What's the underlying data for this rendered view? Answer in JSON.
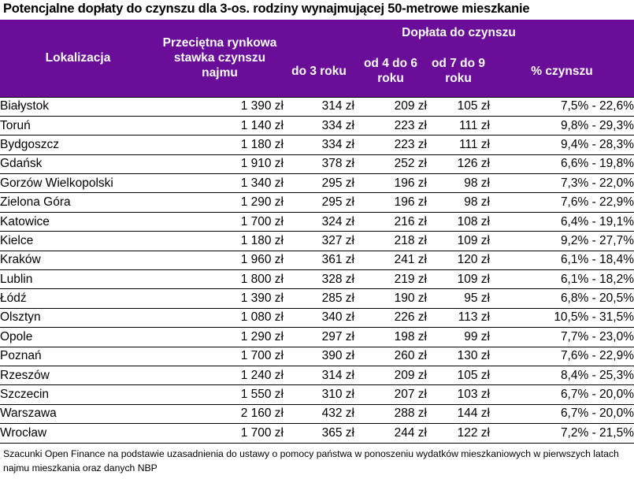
{
  "title": "Potencjalne dopłaty do czynszu dla 3-os. rodziny wynajmującej 50-metrowe mieszkanie",
  "headers": {
    "location": "Lokalizacja",
    "avg_rent": "Przeciętna rynkowa stawka czynszu najmu",
    "subsidy_group": "Dopłata do czynszu",
    "year3": "do 3 roku",
    "year4_6": "od 4 do 6 roku",
    "year7_9": "od 7 do 9 roku",
    "pct_rent": "% czynszu"
  },
  "rows": [
    {
      "city": "Białystok",
      "rent": "1 390 zł",
      "y3": "314 zł",
      "y46": "209 zł",
      "y79": "105 zł",
      "pct": "7,5% - 22,6%"
    },
    {
      "city": "Toruń",
      "rent": "1 140 zł",
      "y3": "334 zł",
      "y46": "223 zł",
      "y79": "111 zł",
      "pct": "9,8% - 29,3%"
    },
    {
      "city": "Bydgoszcz",
      "rent": "1 180 zł",
      "y3": "334 zł",
      "y46": "223 zł",
      "y79": "111 zł",
      "pct": "9,4% - 28,3%"
    },
    {
      "city": "Gdańsk",
      "rent": "1 910 zł",
      "y3": "378 zł",
      "y46": "252 zł",
      "y79": "126 zł",
      "pct": "6,6% - 19,8%"
    },
    {
      "city": "Gorzów Wielkopolski",
      "rent": "1 340 zł",
      "y3": "295 zł",
      "y46": "196 zł",
      "y79": "98 zł",
      "pct": "7,3% - 22,0%"
    },
    {
      "city": "Zielona Góra",
      "rent": "1 290 zł",
      "y3": "295 zł",
      "y46": "196 zł",
      "y79": "98 zł",
      "pct": "7,6% - 22,9%"
    },
    {
      "city": "Katowice",
      "rent": "1 700 zł",
      "y3": "324 zł",
      "y46": "216 zł",
      "y79": "108 zł",
      "pct": "6,4% - 19,1%"
    },
    {
      "city": "Kielce",
      "rent": "1 180 zł",
      "y3": "327 zł",
      "y46": "218 zł",
      "y79": "109 zł",
      "pct": "9,2% - 27,7%"
    },
    {
      "city": "Kraków",
      "rent": "1 960 zł",
      "y3": "361 zł",
      "y46": "241 zł",
      "y79": "120 zł",
      "pct": "6,1% - 18,4%"
    },
    {
      "city": "Lublin",
      "rent": "1 800 zł",
      "y3": "328 zł",
      "y46": "219 zł",
      "y79": "109 zł",
      "pct": "6,1% - 18,2%"
    },
    {
      "city": "Łódź",
      "rent": "1 390 zł",
      "y3": "285 zł",
      "y46": "190 zł",
      "y79": "95 zł",
      "pct": "6,8% - 20,5%"
    },
    {
      "city": "Olsztyn",
      "rent": "1 080 zł",
      "y3": "340 zł",
      "y46": "226 zł",
      "y79": "113 zł",
      "pct": "10,5% - 31,5%"
    },
    {
      "city": "Opole",
      "rent": "1 290 zł",
      "y3": "297 zł",
      "y46": "198 zł",
      "y79": "99 zł",
      "pct": "7,7% - 23,0%"
    },
    {
      "city": "Poznań",
      "rent": "1 700 zł",
      "y3": "390 zł",
      "y46": "260 zł",
      "y79": "130 zł",
      "pct": "7,6% - 22,9%"
    },
    {
      "city": "Rzeszów",
      "rent": "1 240 zł",
      "y3": "314 zł",
      "y46": "209 zł",
      "y79": "105 zł",
      "pct": "8,4% - 25,3%"
    },
    {
      "city": "Szczecin",
      "rent": "1 550 zł",
      "y3": "310 zł",
      "y46": "207 zł",
      "y79": "103 zł",
      "pct": "6,7% - 20,0%"
    },
    {
      "city": "Warszawa",
      "rent": "2 160 zł",
      "y3": "432 zł",
      "y46": "288 zł",
      "y79": "144 zł",
      "pct": "6,7% - 20,0%"
    },
    {
      "city": "Wrocław",
      "rent": "1 700 zł",
      "y3": "365 zł",
      "y46": "244 zł",
      "y79": "122 zł",
      "pct": "7,2% - 21,5%"
    }
  ],
  "footnote": "Szacunki Open Finance na podstawie uzasadnienia do ustawy o pomocy państwa w ponoszeniu wydatków mieszkaniowych w pierwszych latach najmu mieszkania oraz danych NBP",
  "colors": {
    "header_bg": "#6a0e9a",
    "header_text": "#ffffff"
  }
}
